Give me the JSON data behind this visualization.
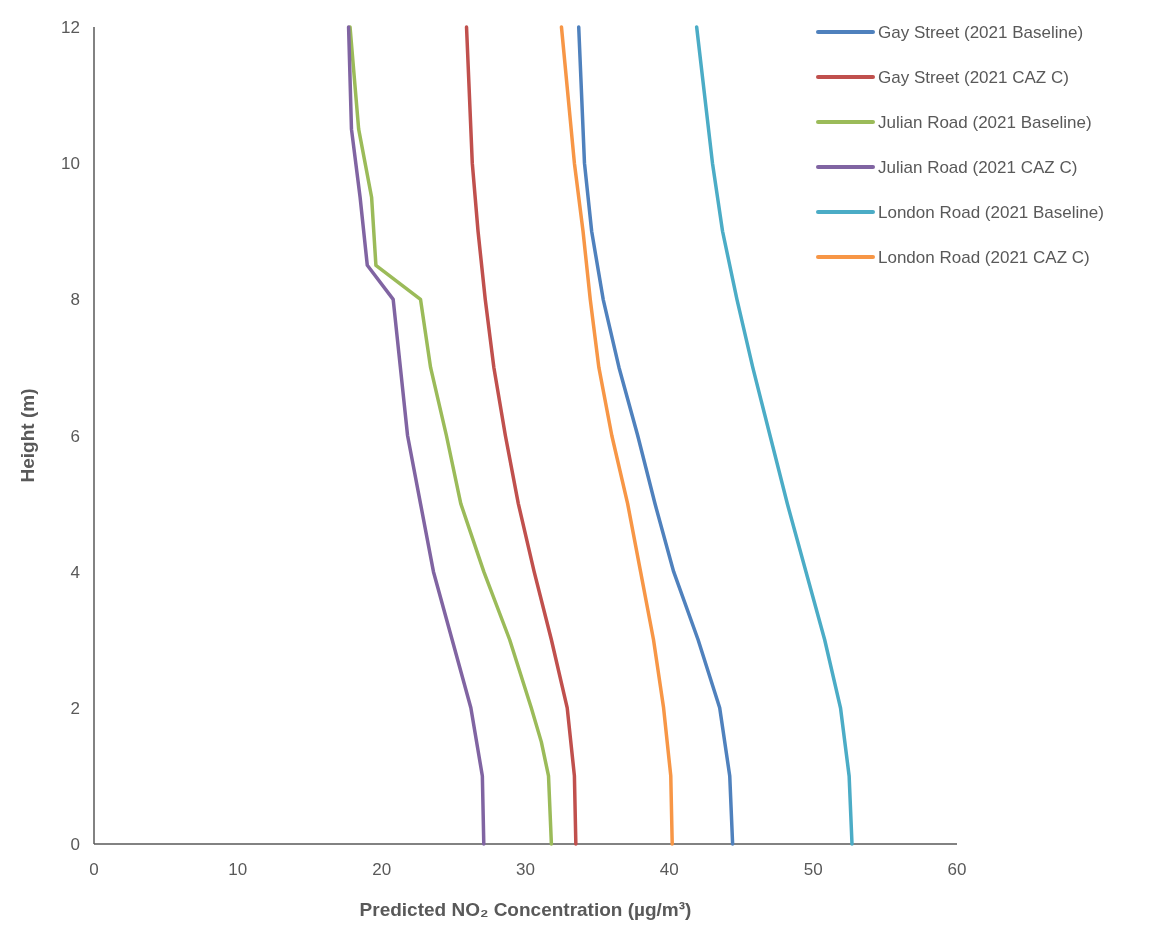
{
  "chart_data": {
    "type": "line",
    "xlabel": "Predicted NO₂ Concentration (µg/m³)",
    "ylabel": "Height (m)",
    "xlim": [
      0,
      60
    ],
    "xticks": [
      0,
      10,
      20,
      30,
      40,
      50,
      60
    ],
    "ylim": [
      0,
      12
    ],
    "yticks": [
      0,
      2,
      4,
      6,
      8,
      10,
      12
    ],
    "grid": false,
    "legend": "top right",
    "marker": "none",
    "line_style": "solid",
    "series": [
      {
        "name": "Gay Street (2021 Baseline)",
        "color": "#4f81bd",
        "x": [
          44.4,
          44.2,
          43.5,
          42.0,
          40.3,
          39.0,
          37.8,
          36.5,
          35.4,
          34.6,
          34.1,
          33.7
        ],
        "values": [
          0,
          1,
          2,
          3,
          4,
          5,
          6,
          7,
          8,
          9,
          10,
          12
        ]
      },
      {
        "name": "Gay Street (2021 CAZ C)",
        "color": "#c0504d",
        "x": [
          33.5,
          33.4,
          32.9,
          31.8,
          30.6,
          29.5,
          28.6,
          27.8,
          27.2,
          26.7,
          26.3,
          25.9
        ],
        "values": [
          0,
          1,
          2,
          3,
          4,
          5,
          6,
          7,
          8,
          9,
          10,
          12
        ]
      },
      {
        "name": "Julian Road (2021 Baseline)",
        "color": "#9bbb59",
        "x": [
          31.8,
          31.6,
          31.1,
          30.4,
          28.9,
          27.1,
          25.5,
          24.5,
          23.4,
          22.7,
          19.6,
          19.3,
          18.4,
          17.8
        ],
        "values": [
          0,
          1,
          1.5,
          2,
          3,
          4,
          5,
          6,
          7,
          8,
          8.5,
          9.5,
          10.5,
          12
        ]
      },
      {
        "name": "Julian Road (2021 CAZ C)",
        "color": "#8064a2",
        "x": [
          27.1,
          27.0,
          26.2,
          24.9,
          23.6,
          22.7,
          21.8,
          21.3,
          20.8,
          19.0,
          18.5,
          17.9,
          17.7
        ],
        "values": [
          0,
          1,
          2,
          3,
          4,
          5,
          6,
          7,
          8,
          8.5,
          9.5,
          10.5,
          12
        ]
      },
      {
        "name": "London Road (2021 Baseline)",
        "color": "#4bacc6",
        "x": [
          52.7,
          52.5,
          51.9,
          50.8,
          49.5,
          48.2,
          47.0,
          45.8,
          44.7,
          43.7,
          43.0,
          41.9
        ],
        "values": [
          0,
          1,
          2,
          3,
          4,
          5,
          6,
          7,
          8,
          9,
          10,
          12
        ]
      },
      {
        "name": "London Road (2021 CAZ C)",
        "color": "#f79646",
        "x": [
          40.2,
          40.1,
          39.6,
          38.9,
          38.0,
          37.1,
          36.0,
          35.1,
          34.5,
          34.0,
          33.4,
          32.5
        ],
        "values": [
          0,
          1,
          2,
          3,
          4,
          5,
          6,
          7,
          8,
          9,
          10,
          12
        ]
      }
    ]
  }
}
